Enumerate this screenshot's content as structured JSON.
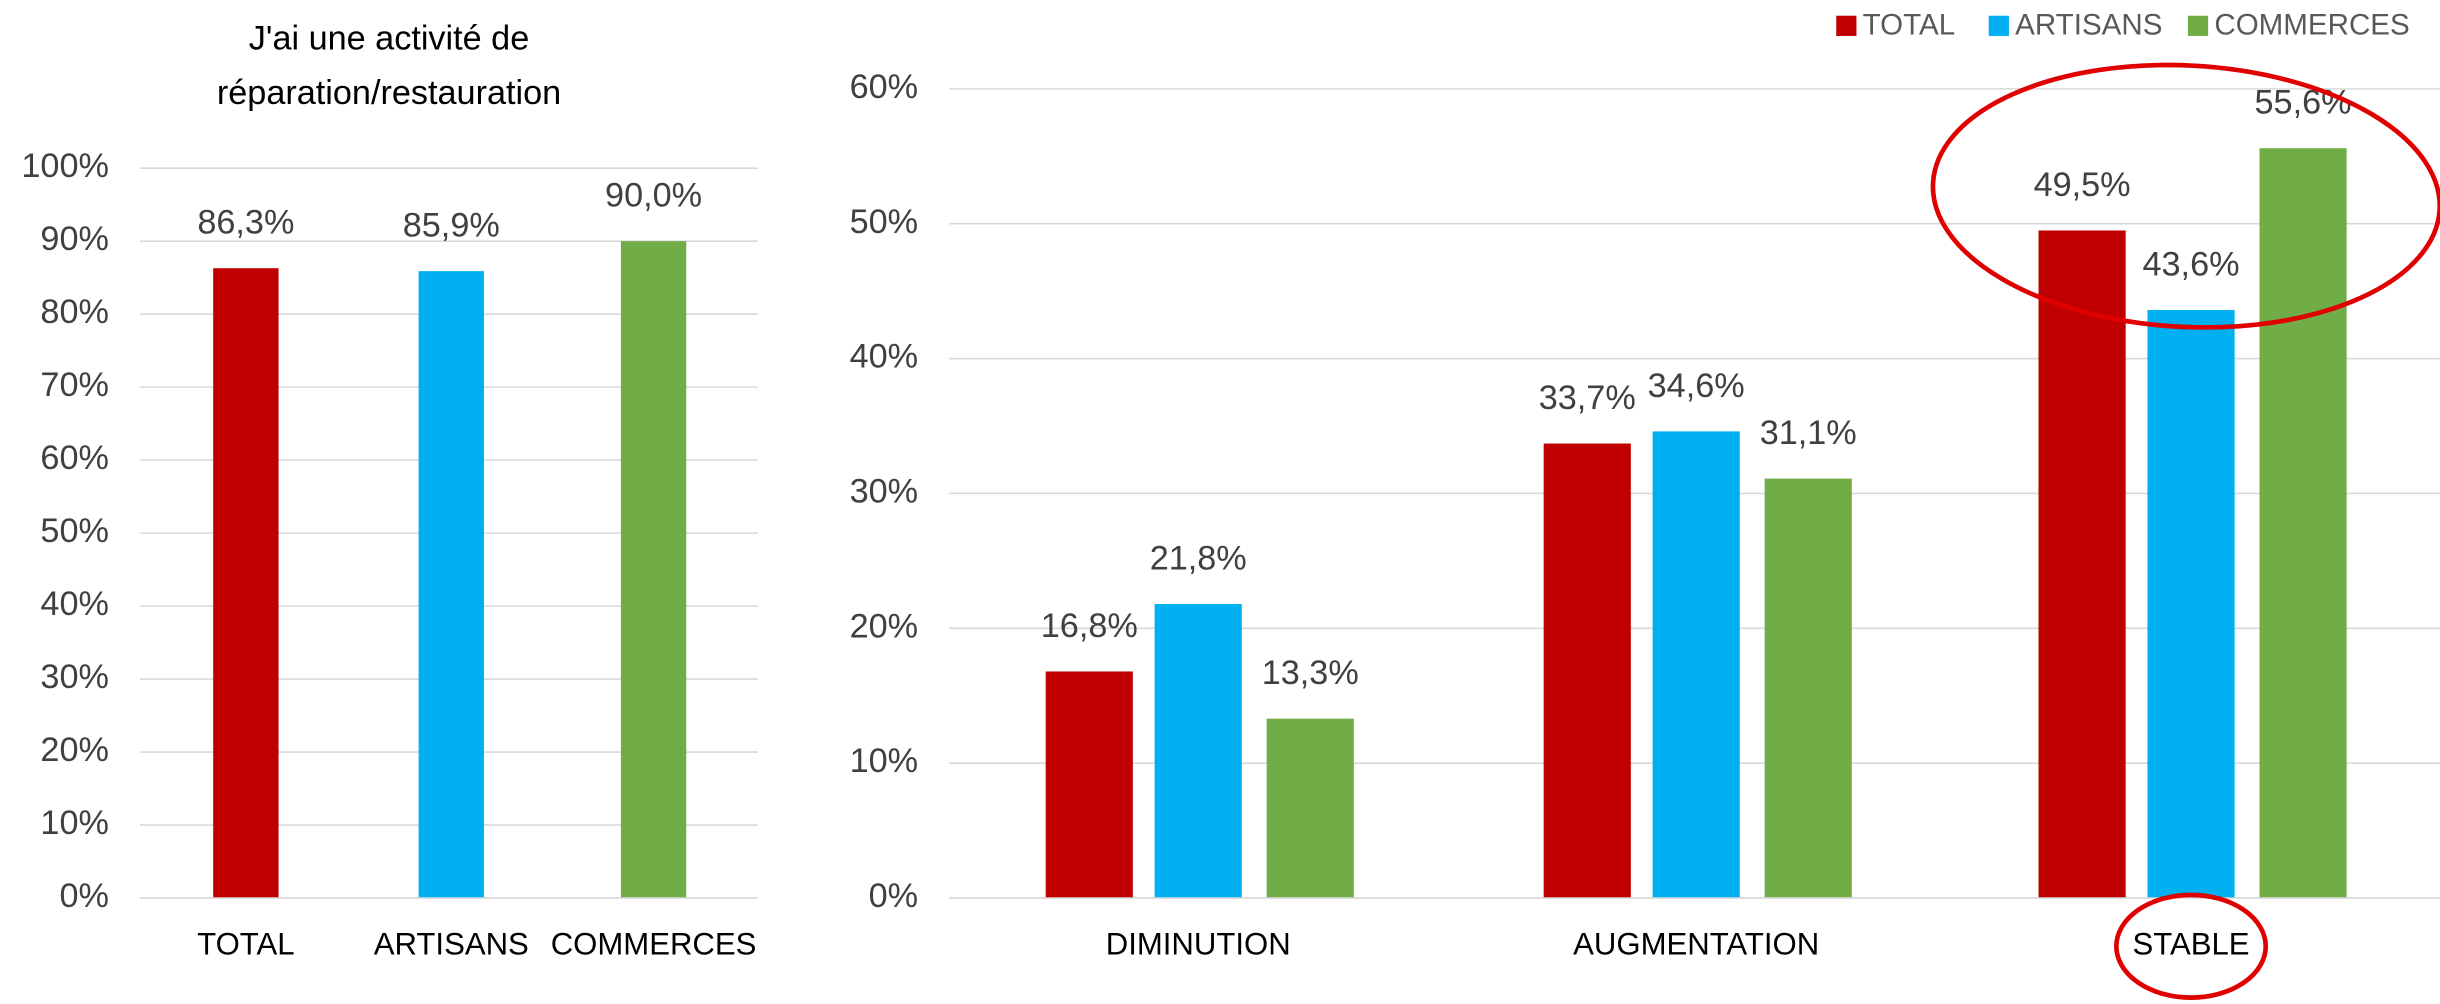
{
  "chart_data": [
    {
      "type": "bar",
      "title": [
        "J'ai une activité de",
        "réparation/restauration"
      ],
      "categories": [
        "TOTAL",
        "ARTISANS",
        "COMMERCES"
      ],
      "values": [
        86.3,
        85.9,
        90.0
      ],
      "value_labels": [
        "86,3%",
        "85,9%",
        "90,0%"
      ],
      "colors": [
        "#c00000",
        "#00b0f0",
        "#70ad47"
      ],
      "ylim": [
        0,
        100
      ],
      "yticks": [
        {
          "value": 0,
          "label": "0%"
        },
        {
          "value": 10,
          "label": "10%"
        },
        {
          "value": 20,
          "label": "20%"
        },
        {
          "value": 30,
          "label": "30%"
        },
        {
          "value": 40,
          "label": "40%"
        },
        {
          "value": 50,
          "label": "50%"
        },
        {
          "value": 60,
          "label": "60%"
        },
        {
          "value": 70,
          "label": "70%"
        },
        {
          "value": 80,
          "label": "80%"
        },
        {
          "value": 90,
          "label": "90%"
        },
        {
          "value": 100,
          "label": "100%"
        }
      ],
      "grid": true
    },
    {
      "type": "grouped_bar",
      "categories": [
        "DIMINUTION",
        "AUGMENTATION",
        "STABLE"
      ],
      "series": [
        {
          "name": "TOTAL",
          "color": "#c00000",
          "values": [
            16.8,
            33.7,
            49.5
          ],
          "value_labels": [
            "16,8%",
            "33,7%",
            "49,5%"
          ]
        },
        {
          "name": "ARTISANS",
          "color": "#00b0f0",
          "values": [
            21.8,
            34.6,
            43.6
          ],
          "value_labels": [
            "21,8%",
            "34,6%",
            "43,6%"
          ]
        },
        {
          "name": "COMMERCES",
          "color": "#70ad47",
          "values": [
            13.3,
            31.1,
            55.6
          ],
          "value_labels": [
            "13,3%",
            "31,1%",
            "55,6%"
          ]
        }
      ],
      "ylim": [
        0,
        60
      ],
      "yticks": [
        {
          "value": 0,
          "label": "0%"
        },
        {
          "value": 10,
          "label": "10%"
        },
        {
          "value": 20,
          "label": "20%"
        },
        {
          "value": 30,
          "label": "30%"
        },
        {
          "value": 40,
          "label": "40%"
        },
        {
          "value": 50,
          "label": "50%"
        },
        {
          "value": 60,
          "label": "60%"
        }
      ],
      "grid": true,
      "legend": "top-right"
    }
  ]
}
